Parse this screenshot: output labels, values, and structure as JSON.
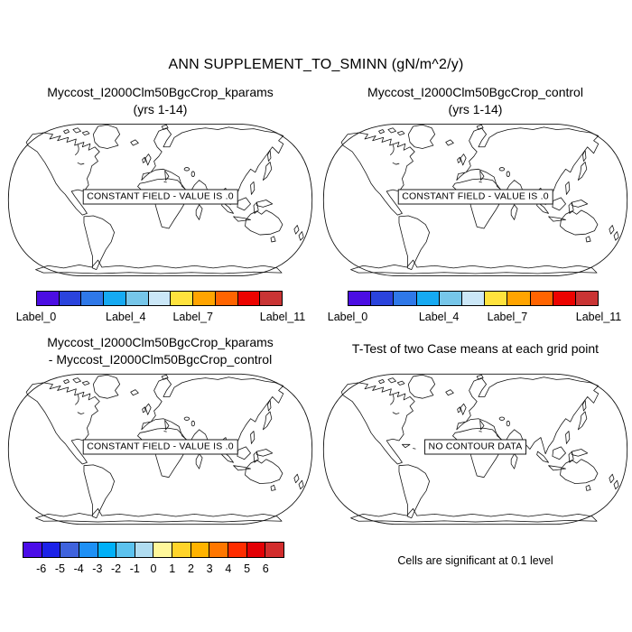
{
  "figure": {
    "title": "ANN SUPPLEMENT_TO_SMINN (gN/m^2/y)",
    "background_color": "#ffffff",
    "line_color": "#000000"
  },
  "panels": [
    {
      "id": "top_left",
      "title_lines": [
        "Myccost_I2000Clm50BgcCrop_kparams",
        "(yrs 1-14)"
      ],
      "overlay": "CONSTANT FIELD - VALUE IS .0"
    },
    {
      "id": "top_right",
      "title_lines": [
        "Myccost_I2000Clm50BgcCrop_control",
        "(yrs 1-14)"
      ],
      "overlay": "CONSTANT FIELD - VALUE IS .0"
    },
    {
      "id": "bottom_left",
      "title_lines": [
        "Myccost_I2000Clm50BgcCrop_kparams",
        "- Myccost_I2000Clm50BgcCrop_control"
      ],
      "overlay": "CONSTANT FIELD - VALUE IS .0"
    },
    {
      "id": "bottom_right",
      "title_lines": [
        "T-Test of two Case means at each grid point"
      ],
      "overlay": "NO CONTOUR DATA",
      "footnote": "Cells are significant at 0.1 level"
    }
  ],
  "colorbars": {
    "cb_top": {
      "colors": [
        "#4B0DE3",
        "#2A43DC",
        "#2F78E8",
        "#16AAF2",
        "#76C6E9",
        "#CBE7F7",
        "#FFE33D",
        "#FFA400",
        "#FF6400",
        "#EC0300",
        "#C93434"
      ],
      "labels": [
        {
          "text": "Label_0",
          "boundary": 0
        },
        {
          "text": "Label_4",
          "boundary": 4
        },
        {
          "text": "Label_7",
          "boundary": 7
        },
        {
          "text": "Label_11",
          "boundary": 11
        }
      ]
    },
    "cb_diff": {
      "colors": [
        "#4B0DE8",
        "#1C22E8",
        "#3F63DD",
        "#1E90F5",
        "#00B0F8",
        "#5CC2EE",
        "#B0DCF0",
        "#FFF79B",
        "#FFD42A",
        "#FFB300",
        "#FF7700",
        "#FF2D00",
        "#E30005",
        "#D22D2D"
      ],
      "labels": [
        {
          "text": "-6",
          "boundary": 1
        },
        {
          "text": "-5",
          "boundary": 2
        },
        {
          "text": "-4",
          "boundary": 3
        },
        {
          "text": "-3",
          "boundary": 4
        },
        {
          "text": "-2",
          "boundary": 5
        },
        {
          "text": "-1",
          "boundary": 6
        },
        {
          "text": "0",
          "boundary": 7
        },
        {
          "text": "1",
          "boundary": 8
        },
        {
          "text": "2",
          "boundary": 9
        },
        {
          "text": "3",
          "boundary": 10
        },
        {
          "text": "4",
          "boundary": 11
        },
        {
          "text": "5",
          "boundary": 12
        },
        {
          "text": "6",
          "boundary": 13
        }
      ]
    }
  },
  "chart_data": [
    {
      "type": "map",
      "projection": "robinson",
      "season": "ANN",
      "variable": "SUPPLEMENT_TO_SMINN",
      "units": "gN/m^2/y",
      "title": "Myccost_I2000Clm50BgcCrop_kparams (yrs 1-14)",
      "field": "constant",
      "constant_value": 0.0,
      "annotation": "CONSTANT FIELD - VALUE IS .0",
      "legend_position": "bottom",
      "legend_labels": [
        "Label_0",
        "Label_4",
        "Label_7",
        "Label_11"
      ],
      "legend_colors": [
        "#4B0DE3",
        "#2A43DC",
        "#2F78E8",
        "#16AAF2",
        "#76C6E9",
        "#CBE7F7",
        "#FFE33D",
        "#FFA400",
        "#FF6400",
        "#EC0300",
        "#C93434"
      ]
    },
    {
      "type": "map",
      "projection": "robinson",
      "season": "ANN",
      "variable": "SUPPLEMENT_TO_SMINN",
      "units": "gN/m^2/y",
      "title": "Myccost_I2000Clm50BgcCrop_control (yrs 1-14)",
      "field": "constant",
      "constant_value": 0.0,
      "annotation": "CONSTANT FIELD - VALUE IS .0",
      "legend_position": "bottom",
      "legend_labels": [
        "Label_0",
        "Label_4",
        "Label_7",
        "Label_11"
      ],
      "legend_colors": [
        "#4B0DE3",
        "#2A43DC",
        "#2F78E8",
        "#16AAF2",
        "#76C6E9",
        "#CBE7F7",
        "#FFE33D",
        "#FFA400",
        "#FF6400",
        "#EC0300",
        "#C93434"
      ]
    },
    {
      "type": "map",
      "projection": "robinson",
      "season": "ANN",
      "variable": "SUPPLEMENT_TO_SMINN",
      "units": "gN/m^2/y",
      "title": "Myccost_I2000Clm50BgcCrop_kparams - Myccost_I2000Clm50BgcCrop_control",
      "field": "difference (constant)",
      "constant_value": 0.0,
      "annotation": "CONSTANT FIELD - VALUE IS .0",
      "legend_position": "bottom",
      "legend_labels": [
        -6,
        -5,
        -4,
        -3,
        -2,
        -1,
        0,
        1,
        2,
        3,
        4,
        5,
        6
      ],
      "legend_colors": [
        "#4B0DE8",
        "#1C22E8",
        "#3F63DD",
        "#1E90F5",
        "#00B0F8",
        "#5CC2EE",
        "#B0DCF0",
        "#FFF79B",
        "#FFD42A",
        "#FFB300",
        "#FF7700",
        "#FF2D00",
        "#E30005",
        "#D22D2D"
      ]
    },
    {
      "type": "map",
      "projection": "robinson",
      "title": "T-Test of two Case means at each grid point",
      "field": "t-test significance",
      "annotation": "NO CONTOUR DATA",
      "note": "Cells are significant at 0.1 level"
    }
  ]
}
